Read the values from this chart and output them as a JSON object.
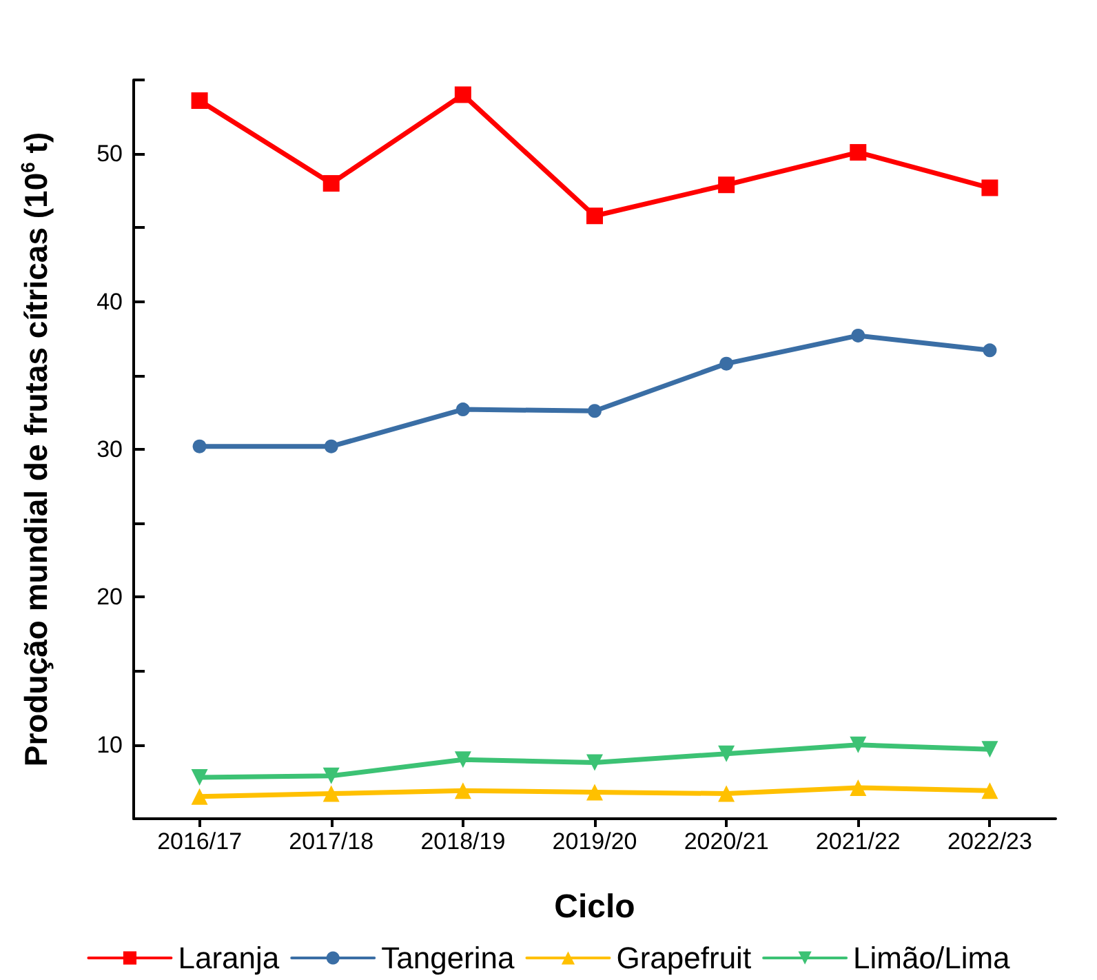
{
  "chart_data": {
    "type": "line",
    "xlabel": "Ciclo",
    "ylabel": "Produção mundial de frutas cítricas (10$^{6}$ t)",
    "categories": [
      "2016/17",
      "2017/18",
      "2018/19",
      "2019/20",
      "2020/21",
      "2021/22",
      "2022/23"
    ],
    "series": [
      {
        "name": "Laranja",
        "color": "#ff0000",
        "marker": "square",
        "values": [
          53.6,
          48.0,
          54.0,
          45.8,
          47.9,
          50.1,
          47.7
        ]
      },
      {
        "name": "Tangerina",
        "color": "#3a6ea5",
        "marker": "circle",
        "values": [
          30.2,
          30.2,
          32.7,
          32.6,
          35.8,
          37.7,
          36.7
        ]
      },
      {
        "name": "Grapefruit",
        "color": "#ffc000",
        "marker": "triangle",
        "values": [
          6.5,
          6.7,
          6.9,
          6.8,
          6.7,
          7.1,
          6.9
        ]
      },
      {
        "name": "Limão/Lima",
        "color": "#3cc274",
        "marker": "triangle-down",
        "values": [
          7.8,
          7.9,
          9.0,
          8.8,
          9.4,
          10.0,
          9.7
        ]
      }
    ],
    "ylim": [
      5,
      55
    ],
    "yticks": [
      10,
      {
        "value": 15,
        "label": null
      },
      20,
      {
        "value": 25,
        "label": null
      },
      30,
      {
        "value": 35,
        "label": null
      },
      40,
      {
        "value": 45,
        "label": null
      },
      50,
      {
        "value": 55,
        "label": null
      }
    ],
    "grid": false,
    "legend": "bottom",
    "line_style": "solid"
  }
}
